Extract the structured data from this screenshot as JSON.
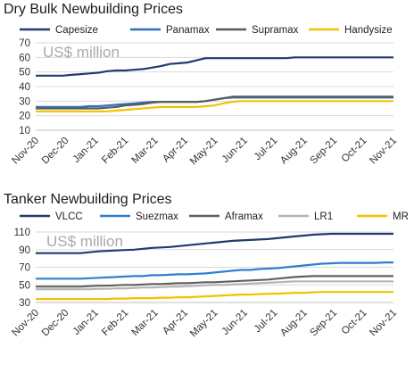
{
  "charts": [
    {
      "title": "Dry Bulk Newbuilding Prices",
      "unit_label": "US$ million"
    },
    {
      "title": "Tanker Newbuilding Prices",
      "unit_label": "US$ million"
    }
  ],
  "chart_data": [
    {
      "type": "line",
      "title": "Dry Bulk Newbuilding Prices",
      "ylabel": "US$ million",
      "ylim": [
        10,
        70
      ],
      "yticks": [
        10,
        20,
        30,
        40,
        50,
        60,
        70
      ],
      "x_tick_labels": [
        "Nov-20",
        "Dec-20",
        "Jan-21",
        "Feb-21",
        "Mar-21",
        "Apr-21",
        "May-21",
        "Jun-21",
        "Jul-21",
        "Aug-21",
        "Sep-21",
        "Oct-21",
        "Nov-21"
      ],
      "grid": "horizontal",
      "legend": "top",
      "series": [
        {
          "name": "Capesize",
          "color": "#233a6e",
          "values": [
            47.5,
            47.5,
            47.5,
            47.5,
            48,
            48.5,
            49,
            49.5,
            50.5,
            51,
            51,
            51.5,
            52,
            53,
            54,
            55.5,
            56,
            56.5,
            58,
            59.5,
            59.5,
            59.5,
            59.5,
            59.5,
            59.5,
            59.5,
            59.5,
            59.5,
            59.5,
            60,
            60,
            60,
            60,
            60,
            60,
            60,
            60,
            60,
            60,
            60,
            60
          ]
        },
        {
          "name": "Panamax",
          "color": "#2f6fc0",
          "values": [
            26,
            26,
            26,
            26,
            26,
            26,
            26.5,
            26.5,
            27,
            27.5,
            28,
            28.5,
            29,
            29.5,
            29.5,
            29.5,
            29.5,
            29.5,
            29.5,
            30,
            31,
            32,
            32.5,
            32.5,
            32.5,
            32.5,
            32.5,
            32.5,
            32.5,
            32.5,
            32.5,
            32.5,
            32.5,
            32.5,
            32.5,
            32.5,
            32.5,
            32.5,
            32.5,
            32.5,
            32.5
          ]
        },
        {
          "name": "Supramax",
          "color": "#5a5a5a",
          "values": [
            25,
            25,
            25,
            25,
            25,
            25,
            25,
            25,
            25.5,
            26,
            27,
            27.5,
            28,
            29,
            29.5,
            29.5,
            29.5,
            29.5,
            29.5,
            30,
            31,
            32,
            33,
            33,
            33,
            33,
            33,
            33,
            33,
            33,
            33,
            33,
            33,
            33,
            33,
            33,
            33,
            33,
            33,
            33,
            33
          ]
        },
        {
          "name": "Handysize",
          "color": "#f2c200",
          "values": [
            23,
            23,
            23,
            23,
            23,
            23,
            23,
            23,
            23,
            23.5,
            24,
            24.5,
            25,
            25.5,
            26,
            26,
            26,
            26,
            26,
            26.5,
            27,
            28.5,
            29.5,
            30,
            30,
            30,
            30,
            30,
            30,
            30,
            30,
            30,
            30,
            30,
            30,
            30,
            30,
            30,
            30,
            30,
            30
          ]
        }
      ]
    },
    {
      "type": "line",
      "title": "Tanker Newbuilding Prices",
      "ylabel": "US$ million",
      "ylim": [
        30,
        110
      ],
      "yticks": [
        30,
        50,
        70,
        90,
        110
      ],
      "x_tick_labels": [
        "Nov-20",
        "Dec-20",
        "Jan-21",
        "Feb-21",
        "Mar-21",
        "Apr-21",
        "May-21",
        "Jun-21",
        "Jul-21",
        "Aug-21",
        "Sep-21",
        "Oct-21",
        "Nov-21"
      ],
      "grid": "horizontal",
      "legend": "top",
      "series": [
        {
          "name": "VLCC",
          "color": "#233a6e",
          "values": [
            86,
            86,
            86,
            86,
            86,
            86,
            87,
            88,
            88.5,
            89,
            89.5,
            90,
            91,
            92,
            92.5,
            93,
            94,
            95,
            96,
            97,
            98,
            99,
            100,
            100.5,
            101,
            101.5,
            102,
            103,
            104,
            105,
            106,
            107,
            107.5,
            108,
            108,
            108,
            108,
            108,
            108,
            108,
            108
          ]
        },
        {
          "name": "Suezmax",
          "color": "#2f7fd0",
          "values": [
            57,
            57,
            57,
            57,
            57,
            57,
            57.5,
            58,
            58.5,
            59,
            59.5,
            60,
            60,
            61,
            61,
            61.5,
            62,
            62,
            62.5,
            63,
            64,
            65,
            66,
            67,
            67,
            68,
            68.5,
            69,
            70,
            71,
            72,
            73,
            74,
            74.5,
            75,
            75,
            75,
            75,
            75,
            75.5,
            75.5
          ]
        },
        {
          "name": "Aframax",
          "color": "#606060",
          "values": [
            48,
            48,
            48,
            48,
            48,
            48,
            48.5,
            49,
            49,
            49.5,
            50,
            50,
            50.5,
            51,
            51,
            51.5,
            52,
            52,
            52.5,
            53,
            53,
            53.5,
            54,
            54.5,
            55,
            55.5,
            56,
            57,
            58,
            59,
            59.5,
            60,
            60,
            60,
            60,
            60,
            60,
            60,
            60,
            60,
            60
          ]
        },
        {
          "name": "LR1",
          "color": "#b3b3b3",
          "values": [
            45,
            45,
            45,
            45,
            45,
            45,
            45,
            45.5,
            45.5,
            46,
            46,
            46.5,
            47,
            47,
            47.5,
            48,
            48,
            48.5,
            49,
            49.5,
            50,
            50,
            50.5,
            51,
            51.5,
            52,
            52.5,
            53,
            53.5,
            54,
            54,
            54,
            54,
            54,
            54,
            54,
            54,
            54,
            54,
            54,
            54
          ]
        },
        {
          "name": "MR",
          "color": "#f2c200",
          "values": [
            34,
            34,
            34,
            34,
            34,
            34,
            34,
            34,
            34,
            34.5,
            34.5,
            35,
            35,
            35,
            35.5,
            35.5,
            36,
            36,
            36.5,
            37,
            37.5,
            38,
            38.5,
            39,
            39,
            39.5,
            40,
            40,
            40.5,
            41,
            41,
            41.5,
            42,
            42,
            42,
            42,
            42,
            42,
            42,
            42,
            42
          ]
        }
      ]
    }
  ]
}
